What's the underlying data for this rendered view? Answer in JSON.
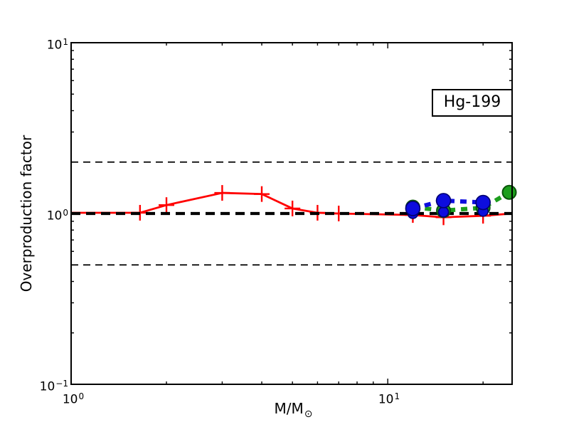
{
  "figure": {
    "background": "#ffffff",
    "frame_color": "#000000"
  },
  "chart_data": {
    "type": "line",
    "title": "",
    "annotation": "Hg-199",
    "xlabel": "M/M⊙",
    "xlabel_main": "M/M",
    "xlabel_sub": "⊙",
    "ylabel": "Overproduction factor",
    "xscale": "log",
    "yscale": "log",
    "xlim": [
      1,
      24.7
    ],
    "ylim": [
      0.1,
      10
    ],
    "grid": false,
    "legend": "none",
    "xticks_major": [
      1,
      10
    ],
    "xticks_minor": [
      2,
      3,
      4,
      5,
      6,
      7,
      8,
      9,
      20
    ],
    "yticks_major": [
      0.1,
      1,
      10
    ],
    "yticks_minor": [
      0.2,
      0.3,
      0.4,
      0.5,
      0.6,
      0.7,
      0.8,
      0.9,
      2,
      3,
      4,
      5,
      6,
      7,
      8,
      9
    ],
    "xtick_labels": [
      {
        "base": "10",
        "exp": "0"
      },
      {
        "base": "10",
        "exp": "1"
      }
    ],
    "ytick_labels": [
      {
        "base": "10",
        "exp": "1"
      },
      {
        "base": "10",
        "exp": "0"
      },
      {
        "base": "10",
        "exp": "−1"
      }
    ],
    "ref_lines": [
      {
        "y": 2.0,
        "color": "#000000",
        "linewidth": 1.8,
        "dash": [
          10,
          7
        ]
      },
      {
        "y": 1.0,
        "color": "#000000",
        "linewidth": 4.2,
        "dash": [
          13,
          8
        ]
      },
      {
        "y": 0.5,
        "color": "#000000",
        "linewidth": 1.8,
        "dash": [
          10,
          7
        ]
      }
    ],
    "series": [
      {
        "name": "red-solid-plus",
        "color": "#ff0000",
        "linestyle": "solid",
        "linewidth": 2.8,
        "marker": "plus",
        "markersize": 22,
        "marker_linewidth": 2.4,
        "x": [
          1.0,
          1.65,
          2.0,
          3.0,
          4.0,
          5.0,
          6.0,
          7.0,
          12.0,
          15.0,
          20.0,
          24.7
        ],
        "y": [
          1.01,
          1.01,
          1.12,
          1.32,
          1.3,
          1.07,
          1.01,
          1.0,
          0.98,
          0.95,
          0.97,
          1.0
        ],
        "marker_indices": [
          1,
          2,
          3,
          4,
          5,
          6,
          7,
          8,
          9,
          10
        ]
      },
      {
        "name": "green-dashed-circles",
        "color": "#1d9e1d",
        "edge": "#0a550a",
        "linestyle": "dashed",
        "dash": [
          9,
          8
        ],
        "linewidth": 6,
        "marker": "circle",
        "markersize": 19,
        "marker_linewidth": 2,
        "x": [
          12.0,
          15.0,
          20.0,
          24.2
        ],
        "y": [
          1.09,
          1.04,
          1.08,
          1.33
        ]
      },
      {
        "name": "blue-small-circles",
        "color": "#0d0dde",
        "edge": "#00006e",
        "linestyle": "none",
        "marker": "circle",
        "markersize": 14,
        "marker_linewidth": 1.6,
        "x": [
          12.0,
          15.0,
          20.0
        ],
        "y": [
          1.0,
          1.02,
          1.03
        ]
      },
      {
        "name": "blue-dashed-large-circles",
        "color": "#0d0dde",
        "edge": "#00006e",
        "linestyle": "dashed",
        "dash": [
          9,
          8
        ],
        "linewidth": 6,
        "marker": "circle",
        "markersize": 20,
        "marker_linewidth": 1.6,
        "x": [
          12.0,
          15.0,
          20.0
        ],
        "y": [
          1.07,
          1.19,
          1.16
        ]
      }
    ]
  }
}
